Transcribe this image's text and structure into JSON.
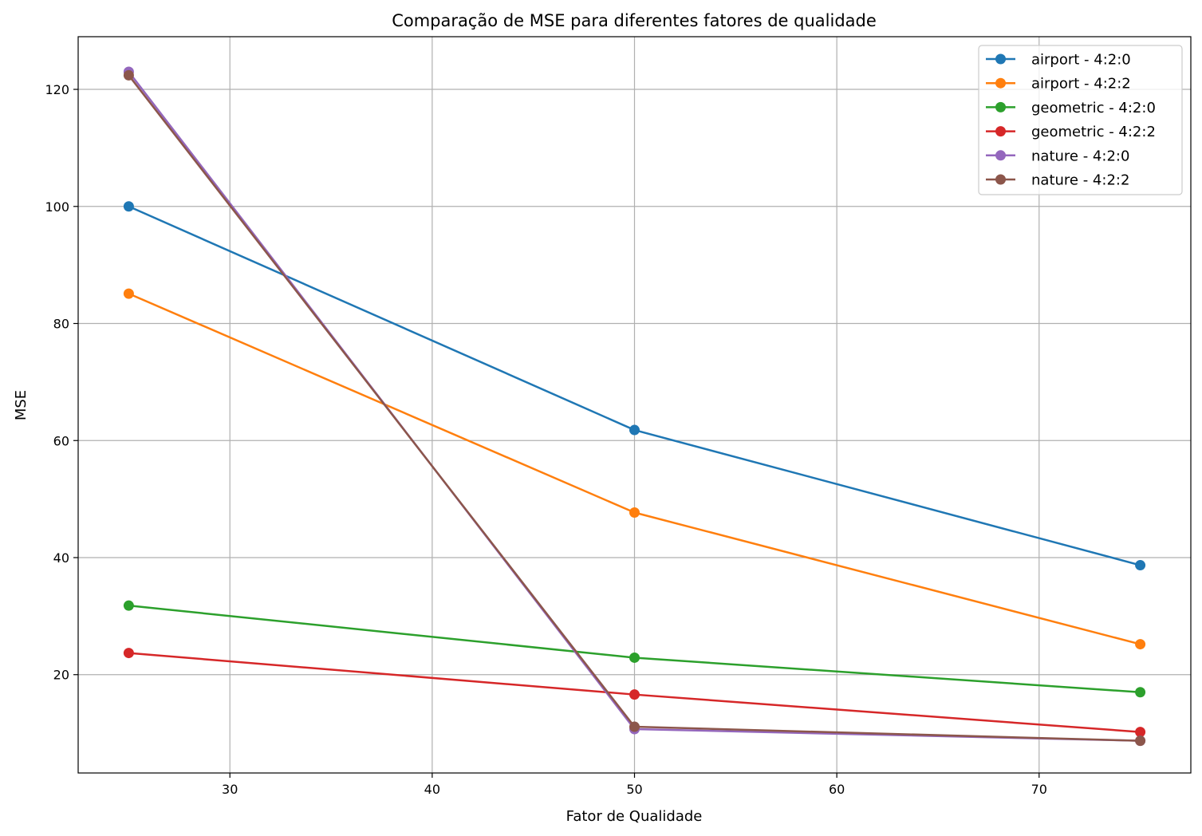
{
  "chart_data": {
    "type": "line",
    "title": "Comparação de MSE para diferentes fatores de qualidade",
    "xlabel": "Fator de Qualidade",
    "ylabel": "MSE",
    "x": [
      25,
      50,
      75
    ],
    "xlim": [
      22.5,
      77.5
    ],
    "ylim": [
      3.2,
      129.0
    ],
    "xticks": [
      30,
      40,
      50,
      60,
      70
    ],
    "yticks": [
      20,
      40,
      60,
      80,
      100,
      120
    ],
    "grid": true,
    "legend_position": "top-right",
    "series": [
      {
        "name": "airport - 4:2:0",
        "color": "#1f77b4",
        "values": [
          100.0,
          61.8,
          38.7
        ]
      },
      {
        "name": "airport - 4:2:2",
        "color": "#ff7f0e",
        "values": [
          85.1,
          47.7,
          25.2
        ]
      },
      {
        "name": "geometric - 4:2:0",
        "color": "#2ca02c",
        "values": [
          31.8,
          22.9,
          17.0
        ]
      },
      {
        "name": "geometric - 4:2:2",
        "color": "#d62728",
        "values": [
          23.7,
          16.6,
          10.2
        ]
      },
      {
        "name": "nature - 4:2:0",
        "color": "#9467bd",
        "values": [
          123.0,
          10.7,
          8.7
        ]
      },
      {
        "name": "nature - 4:2:2",
        "color": "#8c564b",
        "values": [
          122.4,
          11.1,
          8.7
        ]
      }
    ]
  }
}
